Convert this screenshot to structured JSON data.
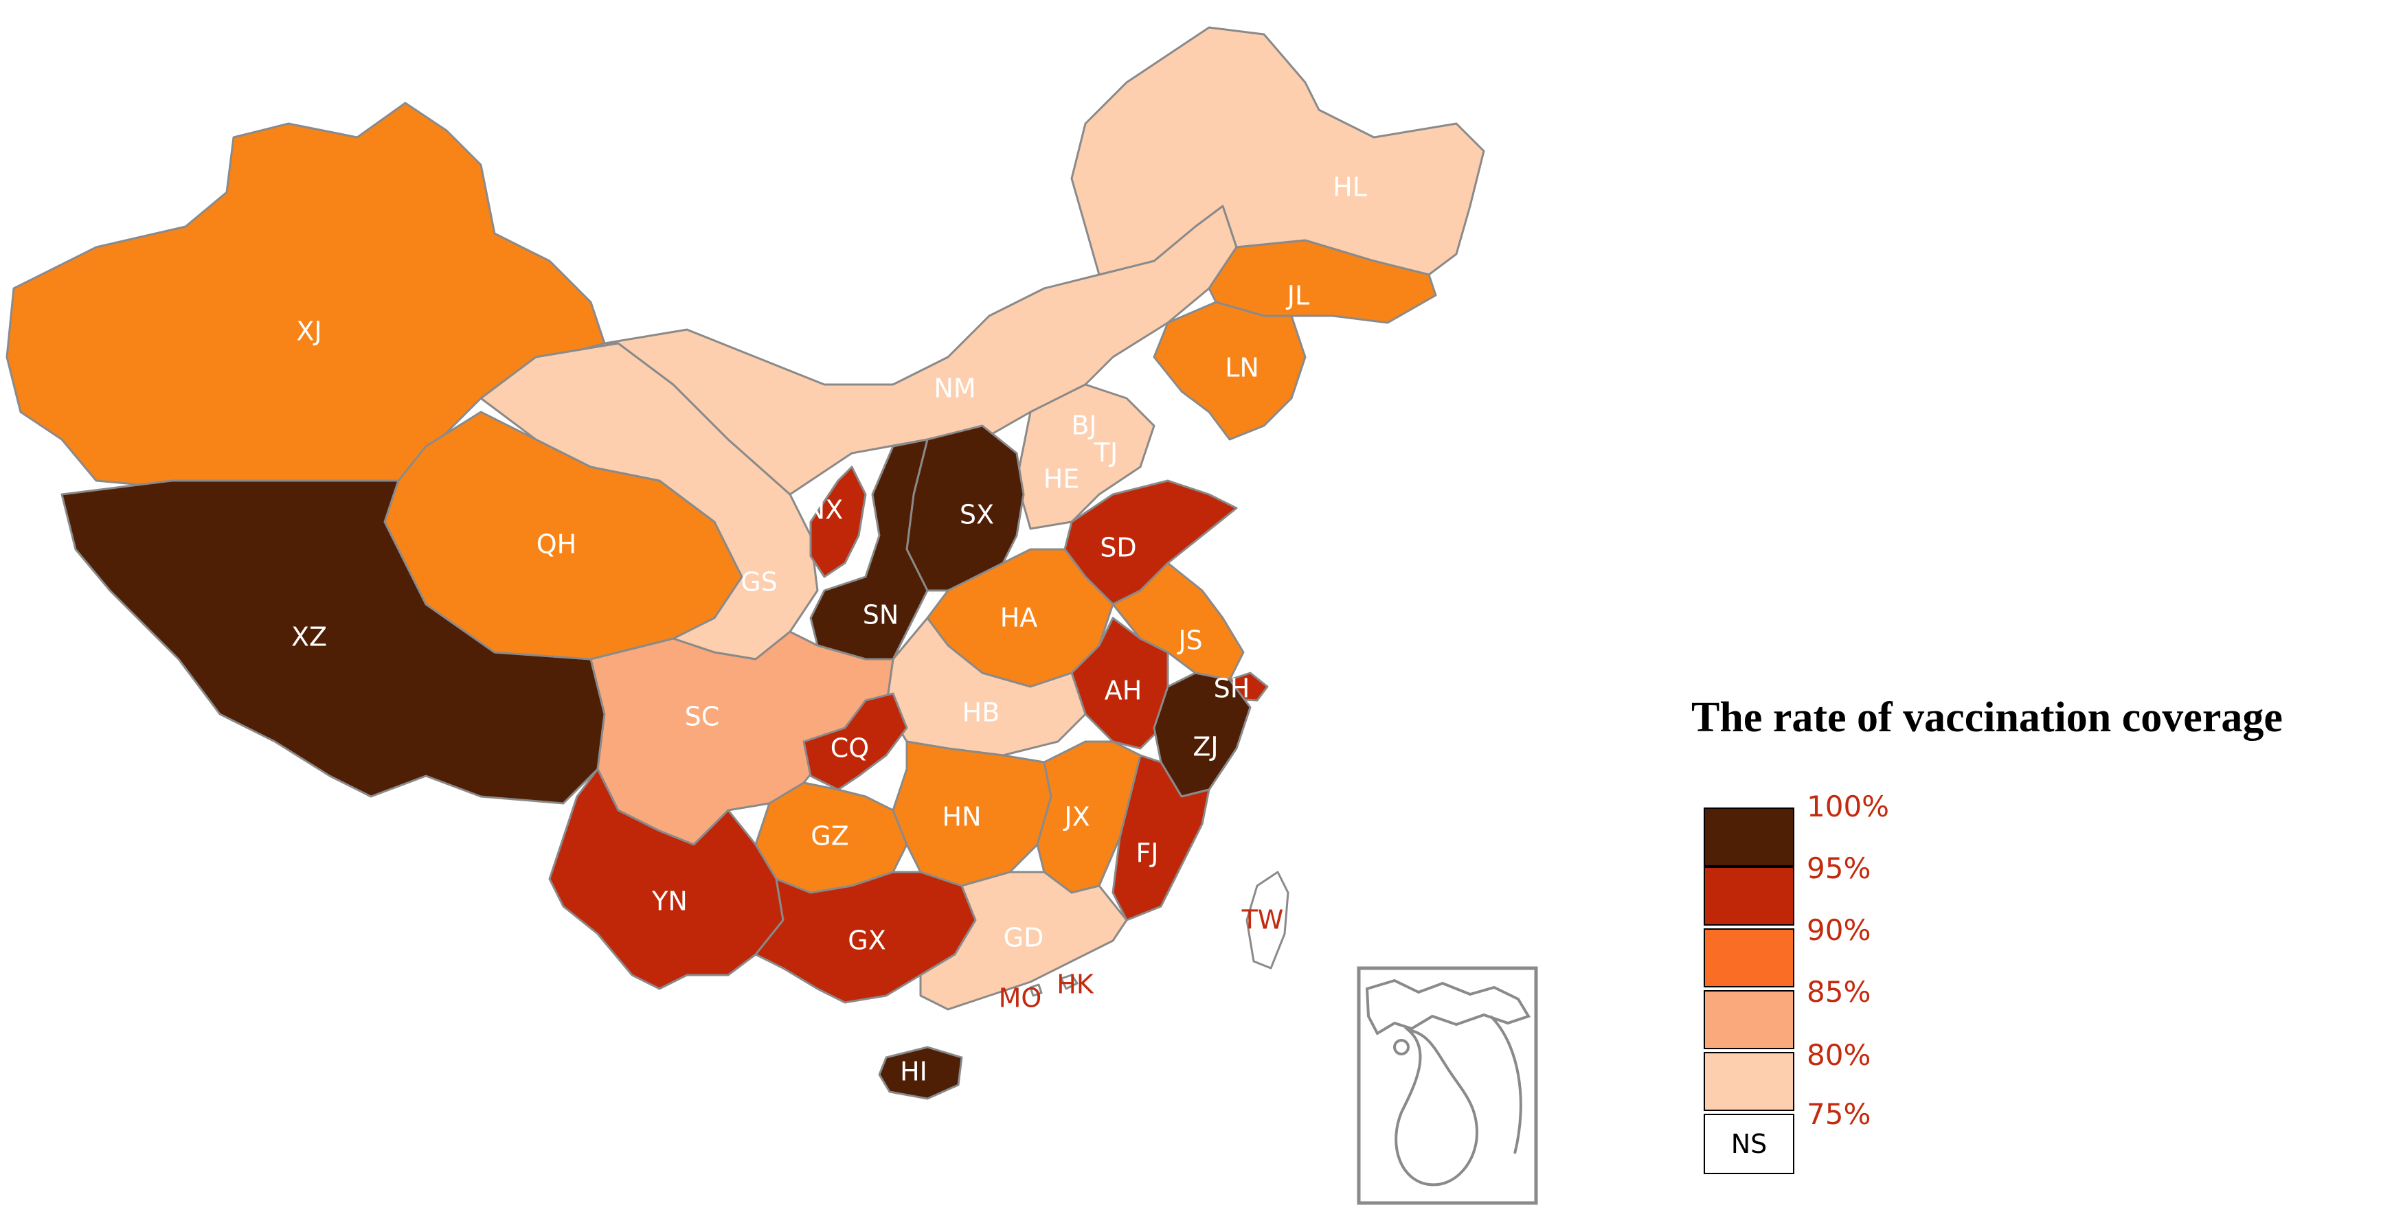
{
  "colors": {
    "c100": "#4e1e05",
    "c95": "#c02709",
    "c90": "#f96d24",
    "c85": "#faa97c",
    "c80": "#fdcfae",
    "outline": "#8a8a8a",
    "label_red": "#c32a0e",
    "orange": "#f88418"
  },
  "legend": {
    "title": "The rate of vaccination coverage",
    "ticks": [
      "100%",
      "95%",
      "90%",
      "85%",
      "80%",
      "75%"
    ],
    "ns": "NS"
  },
  "provinces": [
    {
      "code": "XJ",
      "color": "#f88418",
      "label_color": "#ffffff"
    },
    {
      "code": "XZ",
      "color": "#4e1e05",
      "label_color": "#ffffff"
    },
    {
      "code": "QH",
      "color": "#f88418",
      "label_color": "#ffffff"
    },
    {
      "code": "GS",
      "color": "#fdcfae",
      "label_color": "#ffffff"
    },
    {
      "code": "NM",
      "color": "#fdcfae",
      "label_color": "#ffffff"
    },
    {
      "code": "HL",
      "color": "#fdcfae",
      "label_color": "#ffffff"
    },
    {
      "code": "JL",
      "color": "#f88418",
      "label_color": "#ffffff"
    },
    {
      "code": "LN",
      "color": "#f88418",
      "label_color": "#ffffff"
    },
    {
      "code": "BJ",
      "color": "#c02709",
      "label_color": "#ffffff"
    },
    {
      "code": "TJ",
      "color": "#c02709",
      "label_color": "#ffffff"
    },
    {
      "code": "HE",
      "color": "#fdcfae",
      "label_color": "#ffffff"
    },
    {
      "code": "NX",
      "color": "#c02709",
      "label_color": "#ffffff"
    },
    {
      "code": "SX",
      "color": "#4e1e05",
      "label_color": "#ffffff"
    },
    {
      "code": "SN",
      "color": "#4e1e05",
      "label_color": "#ffffff"
    },
    {
      "code": "SD",
      "color": "#c02709",
      "label_color": "#ffffff"
    },
    {
      "code": "HA",
      "color": "#f88418",
      "label_color": "#ffffff"
    },
    {
      "code": "JS",
      "color": "#f88418",
      "label_color": "#ffffff"
    },
    {
      "code": "SH",
      "color": "#c02709",
      "label_color": "#ffffff"
    },
    {
      "code": "AH",
      "color": "#c02709",
      "label_color": "#ffffff"
    },
    {
      "code": "HB",
      "color": "#fdcfae",
      "label_color": "#ffffff"
    },
    {
      "code": "SC",
      "color": "#faa97c",
      "label_color": "#ffffff"
    },
    {
      "code": "CQ",
      "color": "#c02709",
      "label_color": "#ffffff"
    },
    {
      "code": "ZJ",
      "color": "#4e1e05",
      "label_color": "#ffffff"
    },
    {
      "code": "GZ",
      "color": "#f88418",
      "label_color": "#ffffff"
    },
    {
      "code": "HN",
      "color": "#f88418",
      "label_color": "#ffffff"
    },
    {
      "code": "JX",
      "color": "#f88418",
      "label_color": "#ffffff"
    },
    {
      "code": "FJ",
      "color": "#c02709",
      "label_color": "#ffffff"
    },
    {
      "code": "YN",
      "color": "#c02709",
      "label_color": "#ffffff"
    },
    {
      "code": "GX",
      "color": "#c02709",
      "label_color": "#ffffff"
    },
    {
      "code": "GD",
      "color": "#fdcfae",
      "label_color": "#ffffff"
    },
    {
      "code": "HI",
      "color": "#4e1e05",
      "label_color": "#ffffff"
    },
    {
      "code": "TW",
      "color": "#ffffff",
      "label_color": "#c32a0e"
    },
    {
      "code": "HK",
      "color": "#ffffff",
      "label_color": "#c32a0e"
    },
    {
      "code": "MO",
      "color": "#ffffff",
      "label_color": "#c32a0e"
    }
  ]
}
